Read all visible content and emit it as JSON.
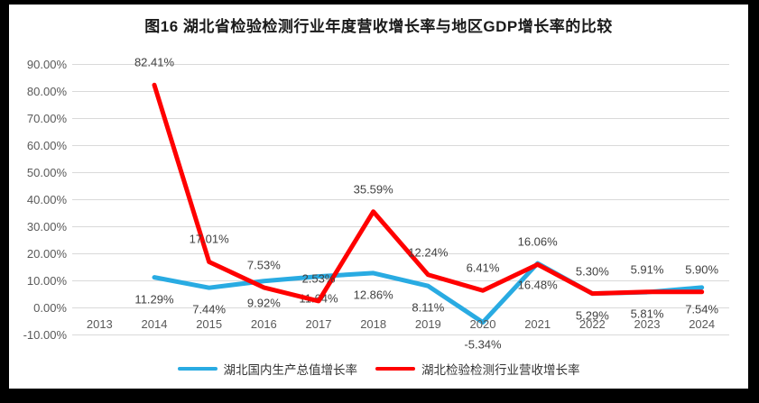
{
  "title": "图16 湖北省检验检测行业年度营收增长率与地区GDP增长率的比较",
  "chart_data": {
    "type": "line",
    "categories": [
      "2013",
      "2014",
      "2015",
      "2016",
      "2017",
      "2018",
      "2019",
      "2020",
      "2021",
      "2022",
      "2023",
      "2024"
    ],
    "series": [
      {
        "name": "湖北国内生产总值增长率",
        "color": "#29ABE2",
        "label_position": "below",
        "values": [
          null,
          11.29,
          7.44,
          9.92,
          11.64,
          12.86,
          8.11,
          -5.34,
          16.48,
          5.29,
          5.81,
          7.54
        ],
        "labels": [
          null,
          "11.29%",
          "7.44%",
          "9.92%",
          "11.64%",
          "12.86%",
          "8.11%",
          "-5.34%",
          "16.48%",
          "5.29%",
          "5.81%",
          "7.54%"
        ]
      },
      {
        "name": "湖北检验检测行业营收增长率",
        "color": "#FF0000",
        "label_position": "above",
        "values": [
          null,
          82.41,
          17.01,
          7.53,
          2.53,
          35.59,
          12.24,
          6.41,
          16.06,
          5.3,
          5.91,
          5.9
        ],
        "labels": [
          null,
          "82.41%",
          "17.01%",
          "7.53%",
          "2.53%",
          "35.59%",
          "12.24%",
          "6.41%",
          "16.06%",
          "5.30%",
          "5.91%",
          "5.90%"
        ]
      }
    ],
    "y_ticks": [
      {
        "value": 90,
        "label": "90.00%"
      },
      {
        "value": 80,
        "label": "80.00%"
      },
      {
        "value": 70,
        "label": "70.00%"
      },
      {
        "value": 60,
        "label": "60.00%"
      },
      {
        "value": 50,
        "label": "50.00%"
      },
      {
        "value": 40,
        "label": "40.00%"
      },
      {
        "value": 30,
        "label": "30.00%"
      },
      {
        "value": 20,
        "label": "20.00%"
      },
      {
        "value": 10,
        "label": "10.00%"
      },
      {
        "value": 0,
        "label": "0.00%"
      },
      {
        "value": -10,
        "label": "-10.00%"
      }
    ],
    "ylim": [
      -10,
      90
    ],
    "grid": true,
    "legend_position": "bottom",
    "colors": {
      "gridline": "#D9D9D9",
      "axis_text": "#595959",
      "label_text": "#404040",
      "background": "#FFFFFF",
      "frame": "#000000"
    }
  }
}
